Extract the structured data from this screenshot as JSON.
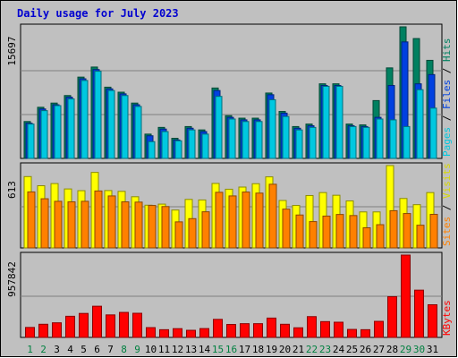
{
  "chart_data": {
    "type": "bar",
    "title": "Daily usage for July 2023",
    "days": [
      "1",
      "2",
      "3",
      "4",
      "5",
      "6",
      "7",
      "8",
      "9",
      "10",
      "11",
      "12",
      "13",
      "14",
      "15",
      "16",
      "17",
      "18",
      "19",
      "20",
      "21",
      "22",
      "23",
      "24",
      "25",
      "26",
      "27",
      "28",
      "29",
      "30",
      "31"
    ],
    "weekend_days": [
      "1",
      "2",
      "8",
      "9",
      "15",
      "16",
      "22",
      "23",
      "29",
      "30"
    ],
    "panels": [
      {
        "id": "hits-files-pages",
        "max_label": "15697",
        "ymax": 15697,
        "right_labels": [
          {
            "text": "Pages",
            "color": "#00c8e0"
          },
          {
            "text": " / ",
            "color": "#000000"
          },
          {
            "text": "Files",
            "color": "#0040e0"
          },
          {
            "text": " / ",
            "color": "#000000"
          },
          {
            "text": "Hits",
            "color": "#008060"
          }
        ],
        "series": [
          {
            "name": "Hits",
            "color": "#008060",
            "values": [
              4400,
              6100,
              6600,
              7500,
              9700,
              10900,
              8500,
              7900,
              6600,
              2900,
              3700,
              2400,
              3800,
              3400,
              8400,
              5100,
              4800,
              4800,
              7800,
              5600,
              3800,
              4100,
              8900,
              8900,
              4100,
              4000,
              6900,
              10800,
              15697,
              14300,
              11700
            ]
          },
          {
            "name": "Files",
            "color": "#0040e0",
            "values": [
              4200,
              5900,
              6400,
              7300,
              9500,
              10600,
              8300,
              7700,
              6400,
              2700,
              3500,
              2200,
              3600,
              3200,
              8100,
              4900,
              4600,
              4600,
              7600,
              5400,
              3600,
              3900,
              8700,
              8700,
              3900,
              3800,
              4900,
              8700,
              13900,
              8900,
              10000
            ]
          },
          {
            "name": "Pages",
            "color": "#00c8e0",
            "values": [
              4100,
              5700,
              6300,
              7100,
              9300,
              10400,
              8100,
              7500,
              6200,
              2000,
              3200,
              2100,
              3400,
              2900,
              7400,
              4700,
              4400,
              4400,
              7000,
              5000,
              3400,
              3700,
              8600,
              8600,
              3800,
              3700,
              4700,
              4600,
              3800,
              8200,
              6000
            ]
          }
        ]
      },
      {
        "id": "visits-sites",
        "max_label": "613",
        "ymax": 613,
        "right_labels": [
          {
            "text": "Sites",
            "color": "#ff8000"
          },
          {
            "text": " / ",
            "color": "#000000"
          },
          {
            "text": "Visits",
            "color": "#d8d800"
          }
        ],
        "series": [
          {
            "name": "Visits",
            "color": "#ffff00",
            "values": [
              531,
              463,
              479,
              439,
              426,
              562,
              427,
              421,
              381,
              318,
              326,
              282,
              361,
              357,
              480,
              437,
              453,
              478,
              529,
              353,
              316,
              390,
              412,
              392,
              350,
              268,
              268,
              613,
              368,
              322,
              412
            ]
          },
          {
            "name": "Sites",
            "color": "#ff8000",
            "values": [
              417,
              366,
              347,
              343,
              347,
              424,
              387,
              343,
              341,
              316,
              308,
              194,
              218,
              269,
              414,
              387,
              416,
              408,
              474,
              289,
              245,
              196,
              237,
              249,
              241,
              150,
              173,
              277,
              256,
              169,
              250
            ]
          }
        ]
      },
      {
        "id": "kbytes",
        "max_label": "957842",
        "ymax": 957842,
        "right_labels": [
          {
            "text": "KBytes",
            "color": "#ff0000"
          }
        ],
        "series": [
          {
            "name": "KBytes",
            "color": "#ff0000",
            "values": [
              116000,
              153000,
              170000,
              246000,
              279000,
              363000,
              262000,
              291000,
              281000,
              114000,
              90000,
              102000,
              83000,
              103000,
              210000,
              151000,
              160000,
              160000,
              225000,
              153000,
              112000,
              242000,
              184000,
              177000,
              93000,
              90000,
              187000,
              474000,
              957842,
              550000,
              380000
            ]
          }
        ]
      }
    ]
  }
}
